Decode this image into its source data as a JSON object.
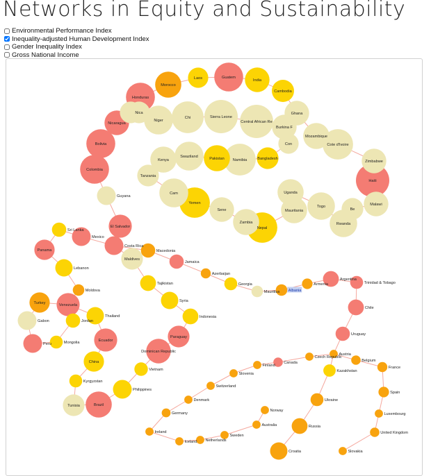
{
  "title": "Networks in Equity and Sustainability",
  "options": [
    {
      "label": "Environmental Performance Index",
      "checked": false
    },
    {
      "label": "Inequality-adjusted Human Development Index",
      "checked": true
    },
    {
      "label": "Gender Inequality Index",
      "checked": false
    },
    {
      "label": "Gross National Income",
      "checked": false
    }
  ],
  "colors": {
    "beige": "#ede6b4",
    "gold": "#fcd404",
    "orange": "#f8a30e",
    "red": "#f47c73",
    "link": "#f5a89e",
    "highlight": "#c3cff0"
  },
  "nodes": [
    {
      "label": "Laos",
      "c": "gold",
      "v": 0.55
    },
    {
      "label": "Guatem",
      "c": "red",
      "v": 0.85
    },
    {
      "label": "India",
      "c": "gold",
      "v": 0.7
    },
    {
      "label": "Cambodia",
      "c": "gold",
      "v": 0.62
    },
    {
      "label": "Morocco",
      "c": "orange",
      "v": 0.75
    },
    {
      "label": "Honduras",
      "c": "red",
      "v": 0.85
    },
    {
      "label": "",
      "c": "beige",
      "v": 0.6
    },
    {
      "label": "Nica",
      "c": "beige",
      "v": 0.6
    },
    {
      "label": "Nicaragua",
      "c": "red",
      "v": 0.7
    },
    {
      "label": "Niger",
      "c": "beige",
      "v": 0.85
    },
    {
      "label": "Chi",
      "c": "beige",
      "v": 0.95
    },
    {
      "label": "Sierra Leone",
      "c": "beige",
      "v": 1.0
    },
    {
      "label": "Central African Re",
      "c": "beige",
      "v": 1.0
    },
    {
      "label": "Burkina F",
      "c": "beige",
      "v": 0.7
    },
    {
      "label": "Ghana",
      "c": "beige",
      "v": 0.7
    },
    {
      "label": "Mozambique",
      "c": "beige",
      "v": 0.75
    },
    {
      "label": "Cote d'Ivoire",
      "c": "beige",
      "v": 0.9
    },
    {
      "label": "Zimbabwe",
      "c": "beige",
      "v": 0.7
    },
    {
      "label": "Haiti",
      "c": "red",
      "v": 1.0
    },
    {
      "label": "Bolivia",
      "c": "red",
      "v": 0.85
    },
    {
      "label": "Colombia",
      "c": "red",
      "v": 0.85
    },
    {
      "label": "Guyana",
      "c": "beige",
      "v": 0.5
    },
    {
      "label": "El Salvador",
      "c": "red",
      "v": 0.65
    },
    {
      "label": "Costa Rica",
      "c": "red",
      "v": 0.5
    },
    {
      "label": "Mexico",
      "c": "red",
      "v": 0.5
    },
    {
      "label": "Sri Lanka",
      "c": "gold",
      "v": 0.35
    },
    {
      "label": "Panama",
      "c": "red",
      "v": 0.55
    },
    {
      "label": "Lebanon",
      "c": "gold",
      "v": 0.45
    },
    {
      "label": "Moldova",
      "c": "orange",
      "v": 0.25
    },
    {
      "label": "Turkey",
      "c": "orange",
      "v": 0.55
    },
    {
      "label": "Venezuela",
      "c": "red",
      "v": 0.65
    },
    {
      "label": "Thailand",
      "c": "gold",
      "v": 0.45
    },
    {
      "label": "Jordan",
      "c": "gold",
      "v": 0.35
    },
    {
      "label": "Gabon",
      "c": "beige",
      "v": 0.5
    },
    {
      "label": "Peru",
      "c": "red",
      "v": 0.5
    },
    {
      "label": "Mongolia",
      "c": "gold",
      "v": 0.3
    },
    {
      "label": "Ecuador",
      "c": "red",
      "v": 0.65
    },
    {
      "label": "China",
      "c": "gold",
      "v": 0.55
    },
    {
      "label": "Kyrgyzstan",
      "c": "gold",
      "v": 0.3
    },
    {
      "label": "Tunisia",
      "c": "beige",
      "v": 0.6
    },
    {
      "label": "Brazil",
      "c": "red",
      "v": 0.75
    },
    {
      "label": "Philippines",
      "c": "gold",
      "v": 0.5
    },
    {
      "label": "Vietnam",
      "c": "gold",
      "v": 0.32
    },
    {
      "label": "Dominican Republic",
      "c": "red",
      "v": 0.7
    },
    {
      "label": "Paraguay",
      "c": "red",
      "v": 0.6
    },
    {
      "label": "Indonesia",
      "c": "gold",
      "v": 0.4
    },
    {
      "label": "Syria",
      "c": "gold",
      "v": 0.45
    },
    {
      "label": "Tajikistan",
      "c": "gold",
      "v": 0.4
    },
    {
      "label": "Maldives",
      "c": "beige",
      "v": 0.6
    },
    {
      "label": "Macedonia",
      "c": "orange",
      "v": 0.35
    },
    {
      "label": "Jamaica",
      "c": "red",
      "v": 0.35
    },
    {
      "label": "Azerbaijan",
      "c": "orange",
      "v": 0.2
    },
    {
      "label": "Georgia",
      "c": "gold",
      "v": 0.3
    },
    {
      "label": "Mauritius",
      "c": "beige",
      "v": 0.25
    },
    {
      "label": "Albania",
      "c": "orange",
      "v": 0.25
    },
    {
      "label": "Armenia",
      "c": "orange",
      "v": 0.22
    },
    {
      "label": "Argentina",
      "c": "red",
      "v": 0.4
    },
    {
      "label": "Trinidad & Tobago",
      "c": "red",
      "v": 0.3
    },
    {
      "label": "Chile",
      "c": "red",
      "v": 0.4
    },
    {
      "label": "Uruguay",
      "c": "red",
      "v": 0.35
    },
    {
      "label": "Austria",
      "c": "orange",
      "v": 0.14
    },
    {
      "label": "Belgium",
      "c": "orange",
      "v": 0.18
    },
    {
      "label": "France",
      "c": "orange",
      "v": 0.2
    },
    {
      "label": "Spain",
      "c": "orange",
      "v": 0.22
    },
    {
      "label": "Luxembourg",
      "c": "orange",
      "v": 0.14
    },
    {
      "label": "United Kingdom",
      "c": "orange",
      "v": 0.18
    },
    {
      "label": "Slovakia",
      "c": "orange",
      "v": 0.14
    },
    {
      "label": "Kazakhstan",
      "c": "gold",
      "v": 0.28
    },
    {
      "label": "Ukraine",
      "c": "orange",
      "v": 0.3
    },
    {
      "label": "Russia",
      "c": "orange",
      "v": 0.4
    },
    {
      "label": "Croatia",
      "c": "orange",
      "v": 0.45
    },
    {
      "label": "Czech Republic",
      "c": "orange",
      "v": 0.14
    },
    {
      "label": "Canada",
      "c": "red",
      "v": 0.18
    },
    {
      "label": "Finland",
      "c": "orange",
      "v": 0.14
    },
    {
      "label": "Slovenia",
      "c": "orange",
      "v": 0.14
    },
    {
      "label": "Switzerland",
      "c": "orange",
      "v": 0.14
    },
    {
      "label": "Denmark",
      "c": "orange",
      "v": 0.14
    },
    {
      "label": "Germany",
      "c": "orange",
      "v": 0.16
    },
    {
      "label": "Ireland",
      "c": "orange",
      "v": 0.14
    },
    {
      "label": "Iceland",
      "c": "orange",
      "v": 0.14
    },
    {
      "label": "Netherlands",
      "c": "orange",
      "v": 0.14
    },
    {
      "label": "Sweden",
      "c": "orange",
      "v": 0.14
    },
    {
      "label": "Australia",
      "c": "orange",
      "v": 0.14
    },
    {
      "label": "Norway",
      "c": "orange",
      "v": 0.14
    },
    {
      "label": "Kenya",
      "c": "beige",
      "v": 0.75
    },
    {
      "label": "Swaziland",
      "c": "beige",
      "v": 0.85
    },
    {
      "label": "Pakistan",
      "c": "gold",
      "v": 0.75
    },
    {
      "label": "Namibia",
      "c": "beige",
      "v": 0.95
    },
    {
      "label": "Bangladesh",
      "c": "gold",
      "v": 0.6
    },
    {
      "label": "Con",
      "c": "beige",
      "v": 0.55
    },
    {
      "label": "Tanzania",
      "c": "beige",
      "v": 0.6
    },
    {
      "label": "Cam",
      "c": "beige",
      "v": 0.85
    },
    {
      "label": "Yemen",
      "c": "gold",
      "v": 0.9
    },
    {
      "label": "Sene",
      "c": "beige",
      "v": 0.7
    },
    {
      "label": "Zambia",
      "c": "beige",
      "v": 0.75
    },
    {
      "label": "Nepal",
      "c": "gold",
      "v": 0.9
    },
    {
      "label": "Mauritania",
      "c": "beige",
      "v": 0.75
    },
    {
      "label": "Uganda",
      "c": "beige",
      "v": 0.75
    },
    {
      "label": "Togo",
      "c": "beige",
      "v": 0.8
    },
    {
      "label": "Rwanda",
      "c": "beige",
      "v": 0.8
    },
    {
      "label": "Be",
      "c": "beige",
      "v": 0.6
    },
    {
      "label": "Malawi",
      "c": "beige",
      "v": 0.7
    }
  ]
}
